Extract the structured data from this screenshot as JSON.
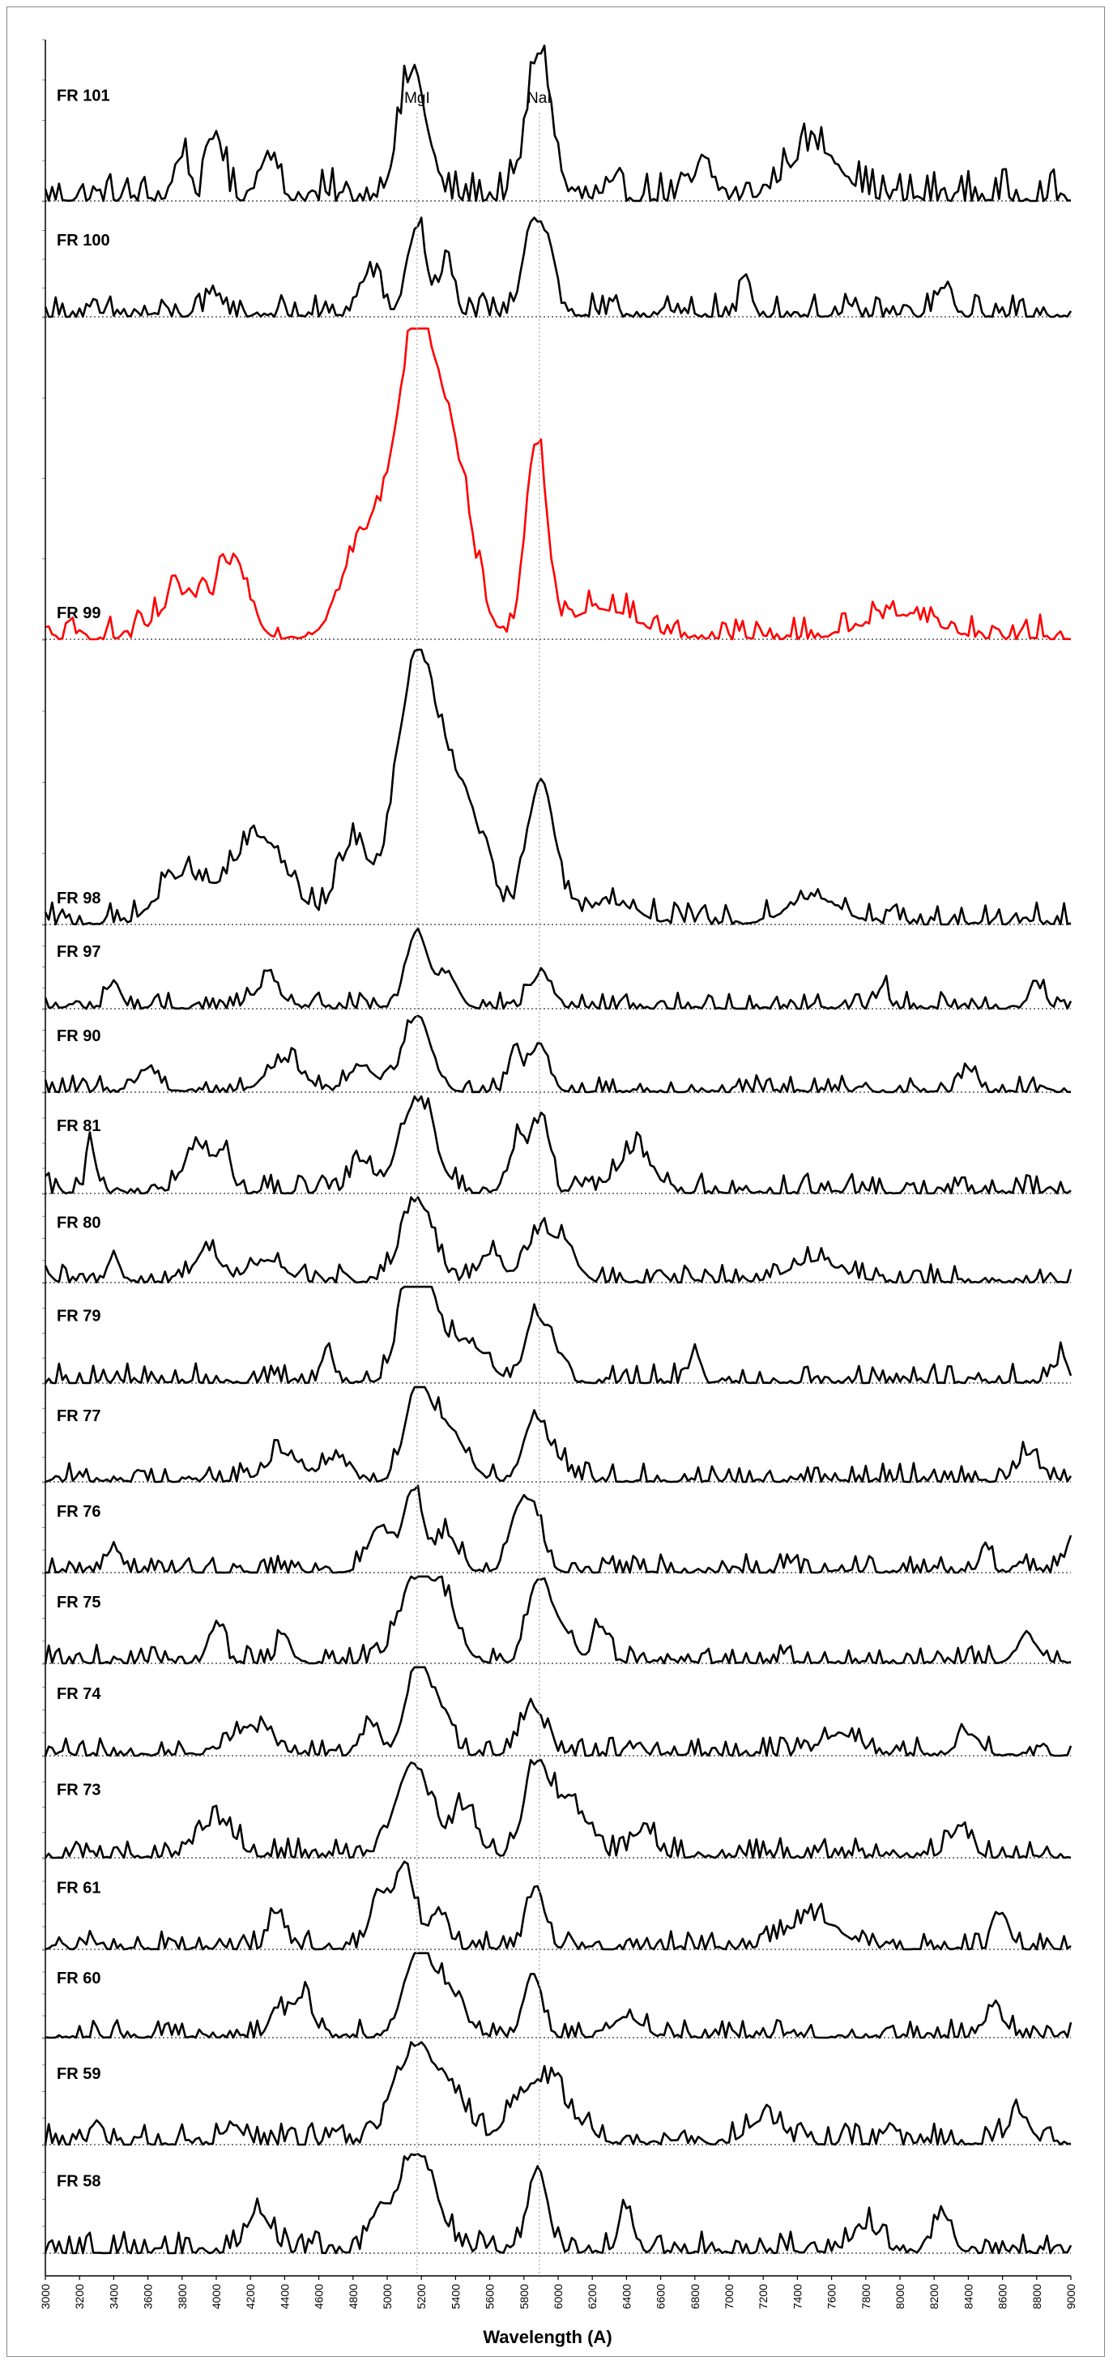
{
  "chart_data": {
    "type": "line",
    "xlabel": "Wavelength (A)",
    "xlim": [
      3000,
      9000
    ],
    "x_ticks": [
      "3000",
      "3200",
      "3400",
      "3600",
      "3800",
      "4000",
      "4200",
      "4400",
      "4600",
      "4800",
      "5000",
      "5200",
      "5400",
      "5600",
      "5800",
      "6000",
      "6200",
      "6400",
      "6600",
      "6800",
      "7000",
      "7200",
      "7400",
      "7600",
      "7800",
      "8000",
      "8200",
      "8400",
      "8600",
      "8800",
      "9000"
    ],
    "reference_lines": [
      {
        "label": "MgI",
        "x": 5175
      },
      {
        "label": "NaI",
        "x": 5890
      }
    ],
    "grid": false,
    "colors": {
      "default": "#000000",
      "highlight": "#ff0000",
      "reference_line": "#aaaaaa"
    },
    "panels": [
      {
        "name": "FR 101",
        "color": "#000000",
        "amplitude": 0.16,
        "peaks": [
          [
            5150,
            0.85,
            80
          ],
          [
            5890,
            1.0,
            70
          ],
          [
            3800,
            0.3,
            40
          ],
          [
            4000,
            0.45,
            40
          ],
          [
            4300,
            0.3,
            50
          ],
          [
            7500,
            0.35,
            150
          ],
          [
            6850,
            0.2,
            60
          ]
        ]
      },
      {
        "name": "FR 100",
        "color": "#000000",
        "amplitude": 0.43,
        "peaks": [
          [
            5175,
            0.85,
            55
          ],
          [
            5350,
            0.5,
            40
          ],
          [
            5850,
            0.9,
            55
          ],
          [
            5950,
            0.55,
            40
          ],
          [
            4900,
            0.4,
            60
          ],
          [
            7100,
            0.35,
            30
          ],
          [
            4000,
            0.2,
            40
          ],
          [
            8250,
            0.25,
            40
          ]
        ]
      },
      {
        "name": "FR 99",
        "color": "#ff0000",
        "amplitude": 1.0,
        "peaks": [
          [
            5170,
            1.0,
            130
          ],
          [
            5400,
            0.45,
            110
          ],
          [
            5870,
            0.65,
            60
          ],
          [
            4100,
            0.25,
            90
          ],
          [
            4850,
            0.3,
            120
          ],
          [
            3800,
            0.15,
            120
          ],
          [
            6250,
            0.1,
            200
          ],
          [
            8000,
            0.08,
            200
          ]
        ]
      },
      {
        "name": "FR 98",
        "color": "#000000",
        "amplitude": 0.97,
        "peaks": [
          [
            5175,
            1.0,
            120
          ],
          [
            5450,
            0.45,
            120
          ],
          [
            5900,
            0.55,
            80
          ],
          [
            4250,
            0.33,
            160
          ],
          [
            3800,
            0.18,
            130
          ],
          [
            4800,
            0.3,
            90
          ],
          [
            6300,
            0.08,
            150
          ],
          [
            7500,
            0.1,
            150
          ]
        ]
      },
      {
        "name": "FR 97",
        "color": "#000000",
        "amplitude": 0.24,
        "peaks": [
          [
            5175,
            1.0,
            60
          ],
          [
            5350,
            0.45,
            60
          ],
          [
            5900,
            0.45,
            60
          ],
          [
            3400,
            0.35,
            35
          ],
          [
            4300,
            0.3,
            80
          ],
          [
            8800,
            0.3,
            40
          ],
          [
            7900,
            0.3,
            30
          ]
        ]
      },
      {
        "name": "FR 90",
        "color": "#000000",
        "amplitude": 0.3,
        "peaks": [
          [
            5175,
            1.0,
            80
          ],
          [
            5750,
            0.6,
            35
          ],
          [
            5890,
            0.65,
            50
          ],
          [
            4400,
            0.4,
            100
          ],
          [
            4850,
            0.35,
            70
          ],
          [
            3600,
            0.3,
            60
          ],
          [
            8400,
            0.3,
            40
          ]
        ]
      },
      {
        "name": "FR 81",
        "color": "#000000",
        "amplitude": 0.36,
        "peaks": [
          [
            5175,
            1.0,
            100
          ],
          [
            5780,
            0.6,
            60
          ],
          [
            5910,
            0.8,
            40
          ],
          [
            3260,
            0.65,
            20
          ],
          [
            3900,
            0.5,
            80
          ],
          [
            4050,
            0.35,
            40
          ],
          [
            4850,
            0.35,
            60
          ],
          [
            6450,
            0.45,
            100
          ]
        ]
      },
      {
        "name": "FR 80",
        "color": "#000000",
        "amplitude": 0.32,
        "peaks": [
          [
            5175,
            1.0,
            90
          ],
          [
            5600,
            0.35,
            60
          ],
          [
            5900,
            0.6,
            90
          ],
          [
            6050,
            0.3,
            60
          ],
          [
            3400,
            0.35,
            30
          ],
          [
            3950,
            0.4,
            70
          ],
          [
            4300,
            0.25,
            100
          ],
          [
            7500,
            0.25,
            150
          ]
        ]
      },
      {
        "name": "FR 79",
        "color": "#000000",
        "amplitude": 0.35,
        "peaks": [
          [
            5125,
            0.9,
            70
          ],
          [
            5230,
            0.9,
            70
          ],
          [
            5450,
            0.45,
            120
          ],
          [
            5850,
            0.6,
            50
          ],
          [
            5950,
            0.45,
            60
          ],
          [
            4650,
            0.4,
            30
          ],
          [
            6800,
            0.4,
            25
          ],
          [
            8950,
            0.3,
            30
          ]
        ]
      },
      {
        "name": "FR 77",
        "color": "#000000",
        "amplitude": 0.35,
        "peaks": [
          [
            5175,
            1.0,
            70
          ],
          [
            5350,
            0.6,
            100
          ],
          [
            5850,
            0.55,
            60
          ],
          [
            5950,
            0.3,
            80
          ],
          [
            4400,
            0.3,
            100
          ],
          [
            4700,
            0.25,
            60
          ],
          [
            8750,
            0.3,
            60
          ]
        ]
      },
      {
        "name": "FR 76",
        "color": "#000000",
        "amplitude": 0.38,
        "peaks": [
          [
            5150,
            1.0,
            60
          ],
          [
            4950,
            0.55,
            60
          ],
          [
            5350,
            0.45,
            60
          ],
          [
            5850,
            0.75,
            60
          ],
          [
            5750,
            0.55,
            50
          ],
          [
            3400,
            0.3,
            40
          ],
          [
            9000,
            0.45,
            25
          ],
          [
            8500,
            0.35,
            30
          ]
        ]
      },
      {
        "name": "FR 75",
        "color": "#000000",
        "amplitude": 0.36,
        "peaks": [
          [
            5175,
            1.0,
            100
          ],
          [
            5350,
            0.55,
            80
          ],
          [
            5880,
            0.85,
            60
          ],
          [
            6000,
            0.45,
            80
          ],
          [
            4000,
            0.45,
            40
          ],
          [
            4400,
            0.35,
            35
          ],
          [
            6250,
            0.45,
            40
          ],
          [
            8750,
            0.3,
            60
          ]
        ]
      },
      {
        "name": "FR 74",
        "color": "#000000",
        "amplitude": 0.35,
        "peaks": [
          [
            5175,
            1.0,
            70
          ],
          [
            5300,
            0.4,
            70
          ],
          [
            5850,
            0.55,
            70
          ],
          [
            4200,
            0.3,
            120
          ],
          [
            4900,
            0.35,
            50
          ],
          [
            7650,
            0.25,
            100
          ],
          [
            8400,
            0.25,
            60
          ]
        ]
      },
      {
        "name": "FR 73",
        "color": "#000000",
        "amplitude": 0.37,
        "peaks": [
          [
            5150,
            1.0,
            100
          ],
          [
            5450,
            0.5,
            70
          ],
          [
            5870,
            0.9,
            70
          ],
          [
            6050,
            0.55,
            100
          ],
          [
            4000,
            0.35,
            100
          ],
          [
            6500,
            0.3,
            60
          ],
          [
            8350,
            0.3,
            60
          ]
        ]
      },
      {
        "name": "FR 61",
        "color": "#000000",
        "amplitude": 0.38,
        "peaks": [
          [
            5100,
            1.0,
            60
          ],
          [
            4950,
            0.65,
            50
          ],
          [
            5300,
            0.45,
            50
          ],
          [
            5870,
            0.75,
            50
          ],
          [
            4350,
            0.45,
            40
          ],
          [
            7500,
            0.35,
            150
          ],
          [
            8600,
            0.4,
            40
          ]
        ]
      },
      {
        "name": "FR 60",
        "color": "#000000",
        "amplitude": 0.3,
        "peaks": [
          [
            5175,
            1.0,
            80
          ],
          [
            5350,
            0.55,
            90
          ],
          [
            5850,
            0.8,
            50
          ],
          [
            4500,
            0.5,
            60
          ],
          [
            4350,
            0.35,
            40
          ],
          [
            6400,
            0.25,
            80
          ],
          [
            8550,
            0.3,
            60
          ]
        ]
      },
      {
        "name": "FR 59",
        "color": "#000000",
        "amplitude": 0.42,
        "peaks": [
          [
            5175,
            1.0,
            120
          ],
          [
            5400,
            0.35,
            80
          ],
          [
            5900,
            0.65,
            150
          ],
          [
            4100,
            0.2,
            50
          ],
          [
            7200,
            0.25,
            90
          ],
          [
            8700,
            0.3,
            60
          ],
          [
            3300,
            0.25,
            30
          ]
        ]
      },
      {
        "name": "FR 58",
        "color": "#000000",
        "amplitude": 0.42,
        "peaks": [
          [
            5175,
            1.0,
            110
          ],
          [
            5880,
            0.85,
            55
          ],
          [
            4250,
            0.4,
            70
          ],
          [
            4950,
            0.35,
            50
          ],
          [
            6400,
            0.45,
            40
          ],
          [
            8250,
            0.4,
            50
          ],
          [
            7800,
            0.25,
            80
          ]
        ]
      }
    ]
  }
}
